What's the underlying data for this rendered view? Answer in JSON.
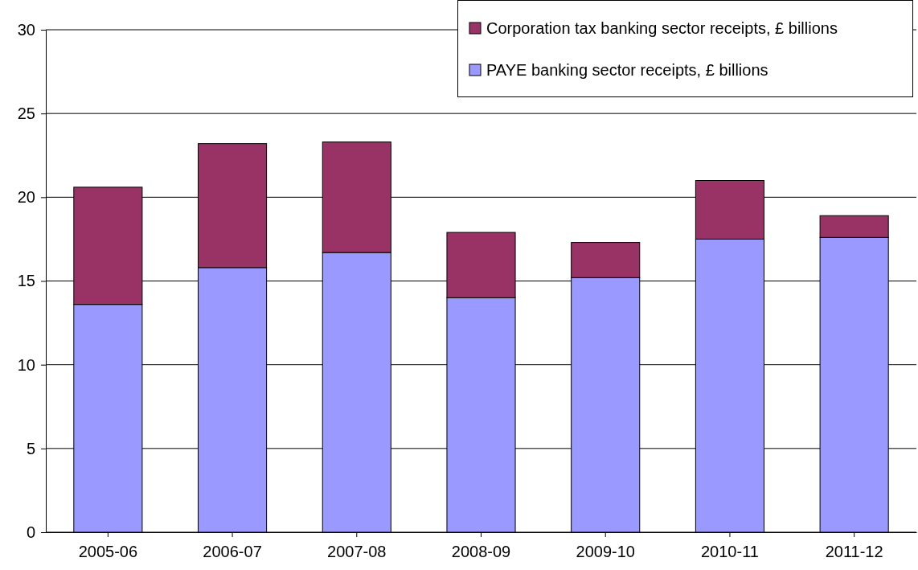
{
  "chart_data": {
    "type": "bar",
    "stacked": true,
    "categories": [
      "2005-06",
      "2006-07",
      "2007-08",
      "2008-09",
      "2009-10",
      "2010-11",
      "2011-12"
    ],
    "series": [
      {
        "name": "PAYE banking sector receipts, £ billions",
        "color": "#9999ff",
        "values": [
          13.6,
          15.8,
          16.7,
          14.0,
          15.2,
          17.5,
          17.6
        ]
      },
      {
        "name": "Corporation tax banking sector receipts, £ billions",
        "color": "#993366",
        "values": [
          7.0,
          7.4,
          6.6,
          3.9,
          2.1,
          3.5,
          1.3
        ]
      }
    ],
    "ylim": [
      0,
      30
    ],
    "yticks": [
      0,
      5,
      10,
      15,
      20,
      25,
      30
    ],
    "grid": "y",
    "legend": "top right"
  }
}
